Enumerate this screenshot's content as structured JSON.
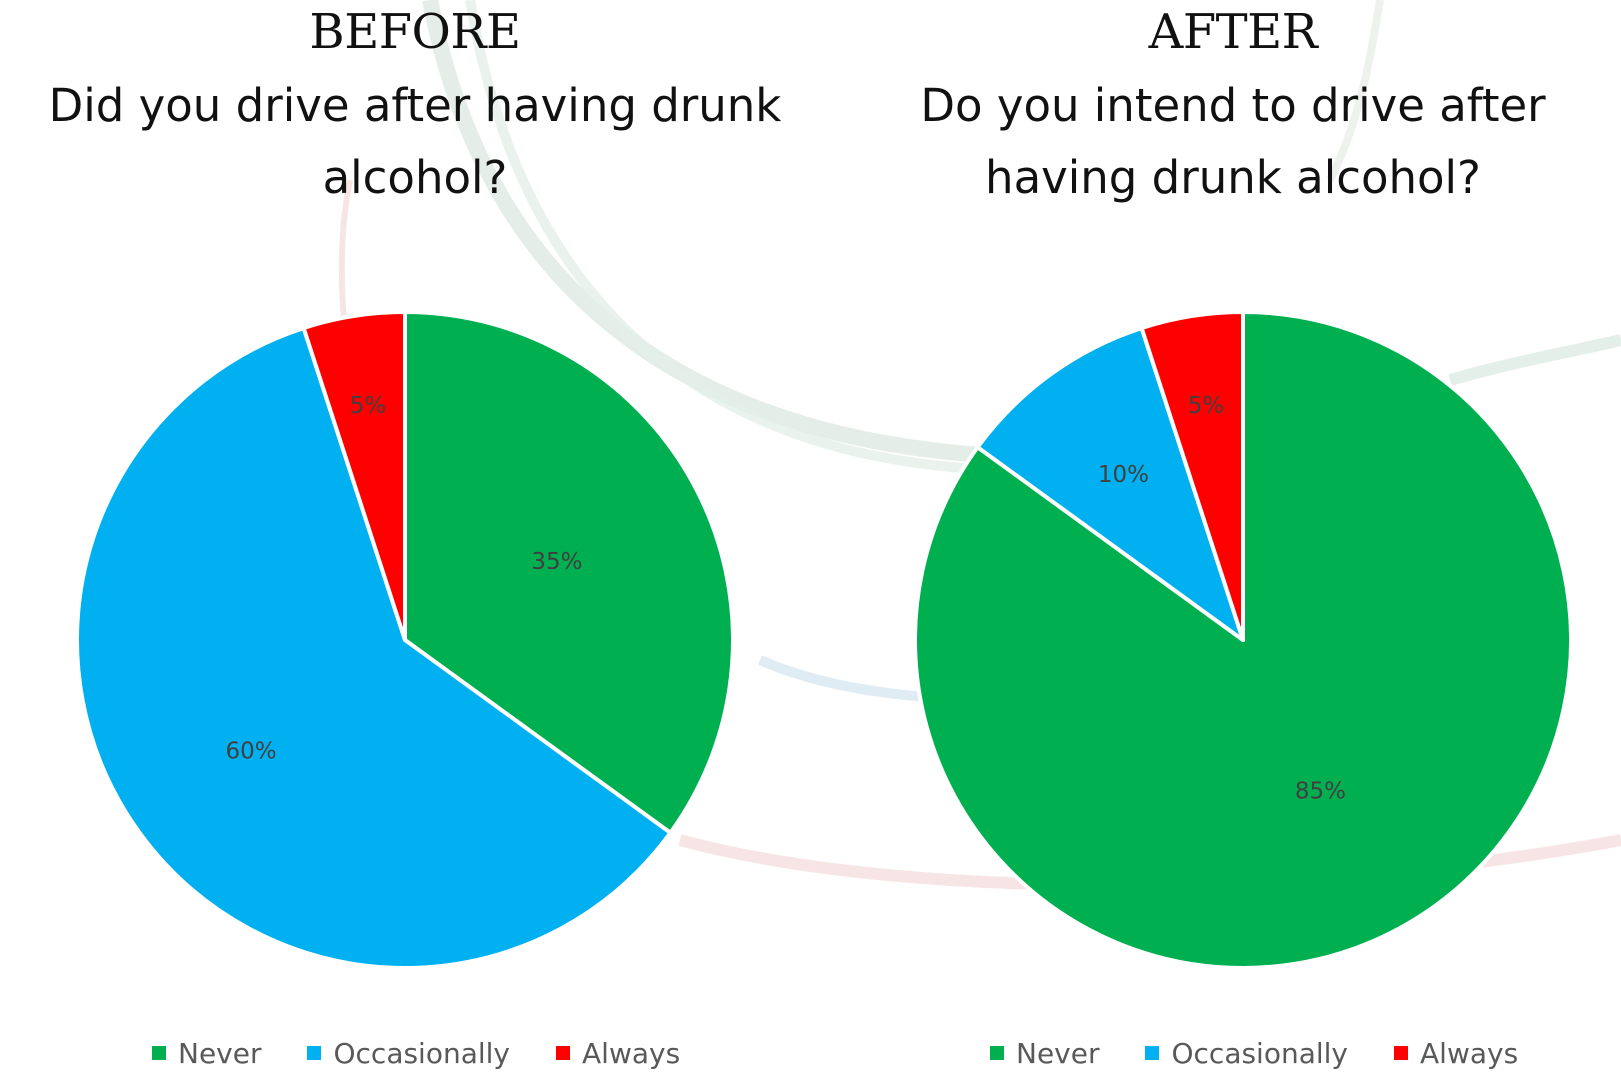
{
  "colors": {
    "Never": "#00B050",
    "Occasionally": "#00B0F0",
    "Always": "#FF0000"
  },
  "legend": [
    "Never",
    "Occasionally",
    "Always"
  ],
  "chart_data": [
    {
      "type": "pie",
      "label": "BEFORE",
      "title": "Did you drive after having drunk alcohol?",
      "categories": [
        "Never",
        "Occasionally",
        "Always"
      ],
      "values": [
        35,
        60,
        5
      ],
      "data_labels": [
        "35%",
        "60%",
        "5%"
      ],
      "legend_position": "bottom"
    },
    {
      "type": "pie",
      "label": "AFTER",
      "title": "Do you intend to drive after having drunk alcohol?",
      "categories": [
        "Never",
        "Occasionally",
        "Always"
      ],
      "values": [
        85,
        10,
        5
      ],
      "data_labels": [
        "85%",
        "10%",
        "5%"
      ],
      "legend_position": "bottom"
    }
  ]
}
